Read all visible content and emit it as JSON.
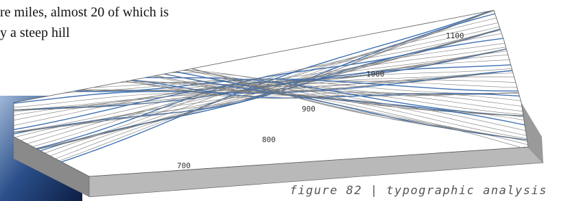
{
  "body_text": {
    "lines": [
      "re miles, almost 20 of which is",
      "y a steep hill"
    ]
  },
  "figure": {
    "contour_labels": [
      "1100",
      "1000",
      "900",
      "800",
      "700"
    ],
    "caption": "figure 82 | typographic analysis"
  }
}
